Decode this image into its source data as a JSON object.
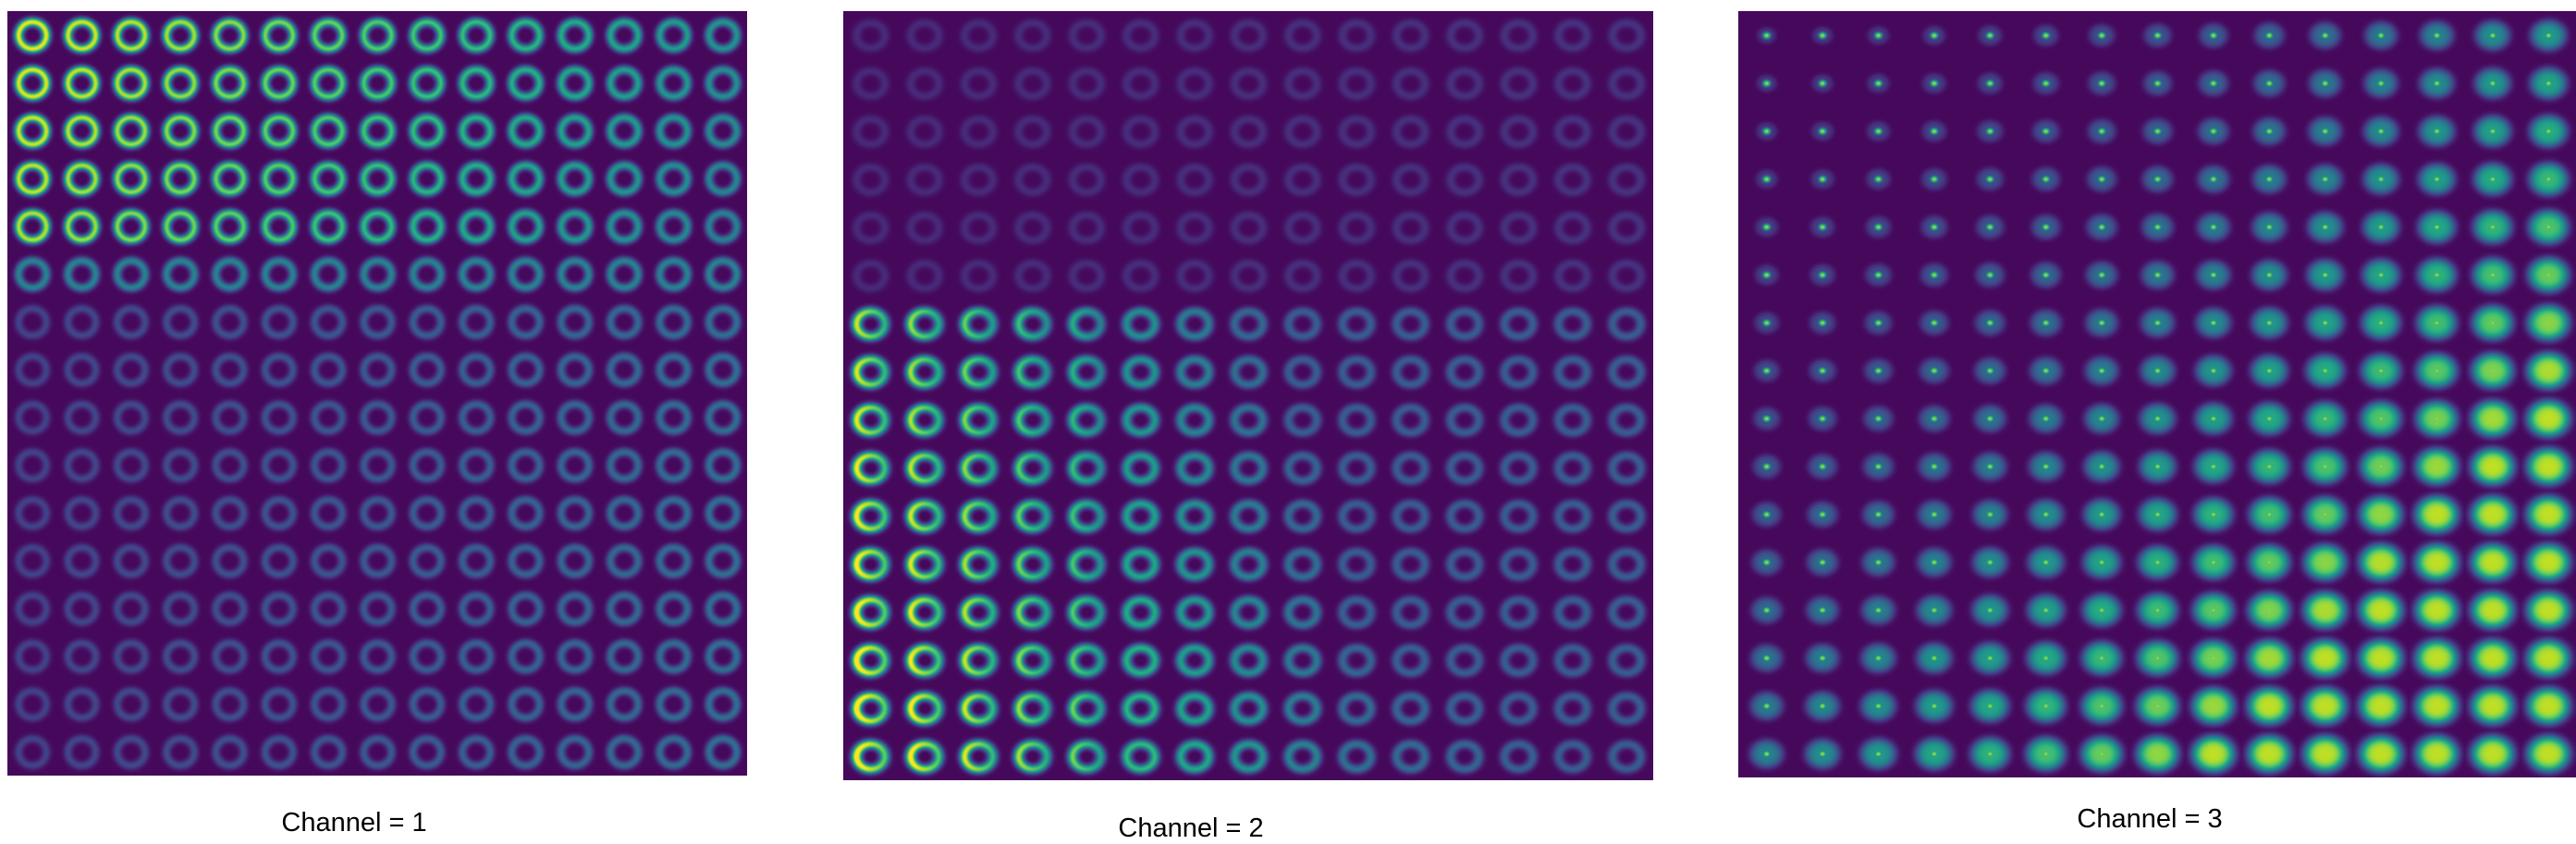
{
  "figure": {
    "panels": [
      {
        "caption": "Channel = 1",
        "grid": {
          "rows": 16,
          "cols": 15
        },
        "colormap": "viridis"
      },
      {
        "caption": "Channel = 2",
        "grid": {
          "rows": 16,
          "cols": 15
        },
        "colormap": "viridis"
      },
      {
        "caption": "Channel = 3",
        "grid": {
          "rows": 16,
          "cols": 15
        },
        "colormap": "viridis"
      }
    ],
    "background_color": "#440154"
  }
}
